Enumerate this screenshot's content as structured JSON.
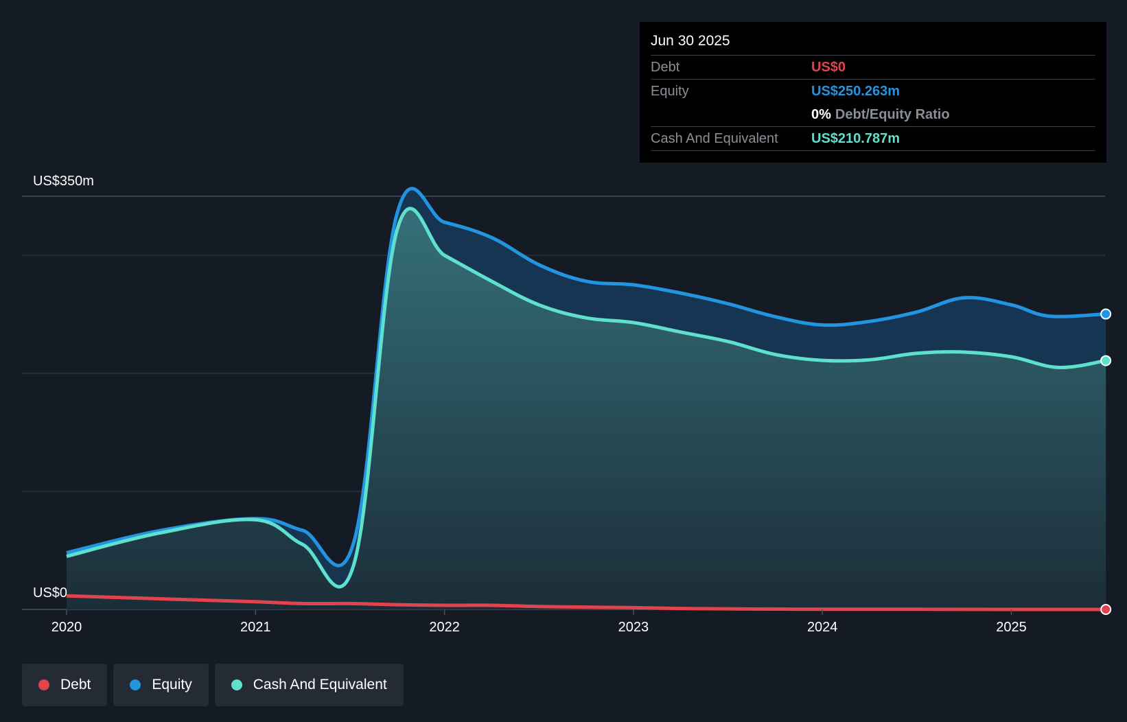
{
  "chart_data": {
    "type": "area",
    "y_axis": {
      "top_label": "US$350m",
      "bottom_label": "US$0",
      "ylim": [
        0,
        350
      ],
      "gridlines": [
        0,
        100,
        200,
        300,
        350
      ]
    },
    "x_axis": {
      "ticks": [
        "2020",
        "2021",
        "2022",
        "2023",
        "2024",
        "2025"
      ],
      "xlim": [
        2019.75,
        2025.5
      ]
    },
    "series": [
      {
        "name": "Debt",
        "color": "#e2434d",
        "x": [
          2020.0,
          2020.5,
          2021.0,
          2021.25,
          2021.5,
          2021.75,
          2022.0,
          2022.25,
          2022.5,
          2022.75,
          2023.0,
          2023.25,
          2023.5,
          2023.75,
          2024.0,
          2024.5,
          2025.0,
          2025.5
        ],
        "values": [
          11.5,
          9.0,
          6.5,
          5.0,
          5.0,
          4.0,
          3.5,
          3.5,
          2.5,
          2.0,
          1.5,
          0.8,
          0.5,
          0.3,
          0.2,
          0.1,
          0.0,
          0.0
        ]
      },
      {
        "name": "Equity",
        "color": "#2394df",
        "x": [
          2020.0,
          2020.5,
          2021.0,
          2021.25,
          2021.52,
          2021.75,
          2022.0,
          2022.25,
          2022.5,
          2022.75,
          2023.0,
          2023.25,
          2023.5,
          2023.75,
          2024.0,
          2024.25,
          2024.5,
          2024.75,
          2025.0,
          2025.2,
          2025.5
        ],
        "values": [
          48.0,
          67.0,
          77.0,
          67.0,
          57.0,
          336.0,
          328.0,
          315.0,
          292.0,
          278.0,
          275.0,
          268.0,
          259.0,
          248.0,
          241.0,
          244.0,
          252.0,
          264.0,
          258.0,
          248.5,
          250.263
        ]
      },
      {
        "name": "Cash And Equivalent",
        "color": "#5fe0cc",
        "x": [
          2020.0,
          2020.5,
          2021.0,
          2021.25,
          2021.52,
          2021.75,
          2022.0,
          2022.25,
          2022.5,
          2022.75,
          2023.0,
          2023.25,
          2023.5,
          2023.75,
          2024.0,
          2024.25,
          2024.5,
          2024.75,
          2025.0,
          2025.25,
          2025.5
        ],
        "values": [
          45.0,
          65.0,
          76.0,
          55.0,
          38.0,
          322.0,
          300.0,
          278.0,
          258.0,
          247.0,
          243.0,
          235.0,
          227.0,
          216.0,
          211.0,
          211.5,
          217.0,
          218.0,
          214.0,
          205.0,
          210.787
        ]
      }
    ]
  },
  "tooltip": {
    "date": "Jun 30 2025",
    "debt_label": "Debt",
    "debt_value": "US$0",
    "equity_label": "Equity",
    "equity_value": "US$250.263m",
    "ratio_value": "0%",
    "ratio_label": "Debt/Equity Ratio",
    "cash_label": "Cash And Equivalent",
    "cash_value": "US$210.787m"
  },
  "legend": [
    {
      "label": "Debt",
      "color": "#e2434d"
    },
    {
      "label": "Equity",
      "color": "#2394df"
    },
    {
      "label": "Cash And Equivalent",
      "color": "#5fe0cc"
    }
  ],
  "colors": {
    "background": "#151b24",
    "debt": "#e2434d",
    "equity": "#2394df",
    "cash": "#5fe0cc"
  }
}
